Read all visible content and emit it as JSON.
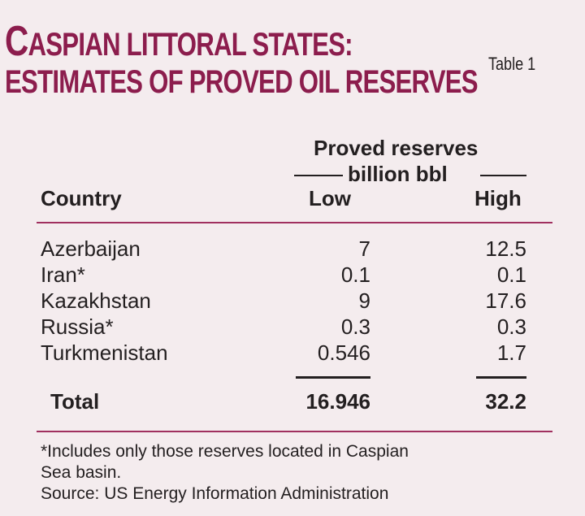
{
  "title": {
    "first_letter": "C",
    "line1_rest": "ASPIAN LITTORAL STATES:",
    "line2": "ESTIMATES OF PROVED OIL RESERVES"
  },
  "table_label": "Table 1",
  "header": {
    "group_title": "Proved reserves",
    "group_subtitle": "billion bbl",
    "country": "Country",
    "low": "Low",
    "high": "High"
  },
  "chart_data": {
    "type": "table",
    "title": "CASPIAN LITTORAL STATES: ESTIMATES OF PROVED OIL RESERVES",
    "columns": [
      "Country",
      "Low",
      "High"
    ],
    "rows": [
      {
        "country": "Azerbaijan",
        "low": "7",
        "high": "12.5"
      },
      {
        "country": "Iran*",
        "low": "0.1",
        "high": "0.1"
      },
      {
        "country": "Kazakhstan",
        "low": "9",
        "high": "17.6"
      },
      {
        "country": "Russia*",
        "low": "0.3",
        "high": "0.3"
      },
      {
        "country": "Turkmenistan",
        "low": "0.546",
        "high": "1.7"
      }
    ],
    "total": {
      "country": "Total",
      "low": "16.946",
      "high": "32.2"
    }
  },
  "footnote": {
    "line1": "*Includes only those reserves located in Caspian",
    "line2": "Sea basin.",
    "source": "Source: US Energy Information Administration"
  },
  "colors": {
    "background": "#f4ecee",
    "title": "#8c1d4d",
    "rule": "#a0305f",
    "text": "#231f20"
  }
}
